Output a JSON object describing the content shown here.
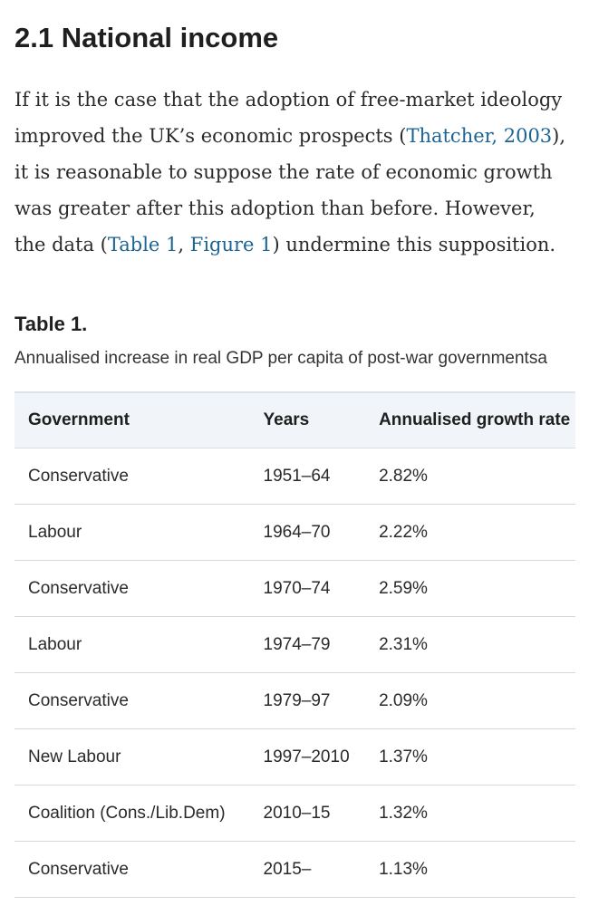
{
  "section": {
    "title": "2.1 National income"
  },
  "paragraph": {
    "part1": "If it is the case that the adoption of free-market ideology improved the UK’s economic prospects (",
    "cite_thatcher": "Thatcher, 2003",
    "part2": "), it is reasonable to suppose the rate of economic growth was greater after this adoption than before. However, the data (",
    "ref_table": "Table 1",
    "sep": ", ",
    "ref_figure": "Figure 1",
    "part3": ") undermine this supposition."
  },
  "table": {
    "label": "Table 1.",
    "caption": "Annualised increase in real GDP per capita of post-war governmentsa",
    "headers": [
      "Government",
      "Years",
      "Annualised growth rate"
    ],
    "rows": [
      [
        "Conservative",
        "1951–64",
        "2.82%"
      ],
      [
        "Labour",
        "1964–70",
        "2.22%"
      ],
      [
        "Conservative",
        "1970–74",
        "2.59%"
      ],
      [
        "Labour",
        "1974–79",
        "2.31%"
      ],
      [
        "Conservative",
        "1979–97",
        "2.09%"
      ],
      [
        "New Labour",
        "1997–2010",
        "1.37%"
      ],
      [
        "Coalition (Cons./Lib.Dem)",
        "2010–15",
        "1.32%"
      ],
      [
        "Conservative",
        "2015–",
        "1.13%"
      ]
    ]
  },
  "colors": {
    "link": "#1b6493",
    "header_bg": "#f1f4f8"
  }
}
